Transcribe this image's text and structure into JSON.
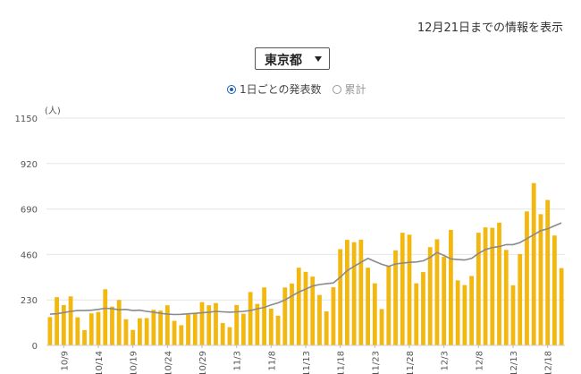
{
  "header": {
    "info_note": "12月21日までの情報を表示"
  },
  "prefecture_select": {
    "selected": "東京都"
  },
  "mode_options": [
    {
      "label": "1日ごとの発表数",
      "selected": true
    },
    {
      "label": "累計",
      "selected": false
    }
  ],
  "colors": {
    "bar": "#f3b810",
    "line": "#8a8a8a",
    "grid": "#e6e6e6",
    "axis_text": "#555555"
  },
  "chart_data": {
    "type": "bar",
    "y_unit_label": "(人)",
    "ylim": [
      0,
      1150
    ],
    "yticks": [
      "0",
      "230",
      "460",
      "690",
      "920",
      "1150"
    ],
    "grid": true,
    "x_tick_labels": [
      "10/9",
      "10/14",
      "10/19",
      "10/24",
      "10/29",
      "11/3",
      "11/8",
      "11/13",
      "11/18",
      "11/23",
      "11/28",
      "12/3",
      "12/8",
      "12/13",
      "12/18"
    ],
    "x_tick_indices": [
      2,
      7,
      12,
      17,
      22,
      27,
      32,
      37,
      42,
      47,
      52,
      57,
      62,
      67,
      72
    ],
    "series": [
      {
        "type": "bar",
        "values": [
          143,
          244,
          204,
          248,
          142,
          77,
          162,
          169,
          284,
          196,
          230,
          132,
          78,
          137,
          138,
          180,
          176,
          203,
          124,
          102,
          156,
          161,
          219,
          203,
          214,
          113,
          92,
          204,
          160,
          270,
          210,
          293,
          186,
          150,
          293,
          313,
          393,
          372,
          348,
          255,
          172,
          294,
          487,
          534,
          522,
          535,
          393,
          314,
          184,
          403,
          481,
          570,
          560,
          314,
          371,
          497,
          537,
          449,
          584,
          329,
          305,
          351,
          570,
          597,
          595,
          621,
          483,
          304,
          462,
          678,
          821,
          664,
          736,
          556,
          391
        ]
      },
      {
        "type": "line",
        "values": [
          158,
          160,
          166,
          172,
          176,
          176,
          178,
          182,
          188,
          185,
          180,
          182,
          176,
          178,
          172,
          168,
          162,
          158,
          156,
          157,
          160,
          162,
          165,
          168,
          172,
          170,
          168,
          170,
          172,
          176,
          185,
          192,
          205,
          215,
          230,
          250,
          270,
          285,
          300,
          308,
          312,
          316,
          345,
          378,
          400,
          420,
          440,
          425,
          410,
          400,
          412,
          416,
          420,
          422,
          428,
          445,
          470,
          455,
          438,
          434,
          432,
          440,
          465,
          485,
          495,
          500,
          510,
          510,
          520,
          540,
          560,
          580,
          590,
          605,
          620
        ]
      }
    ]
  }
}
